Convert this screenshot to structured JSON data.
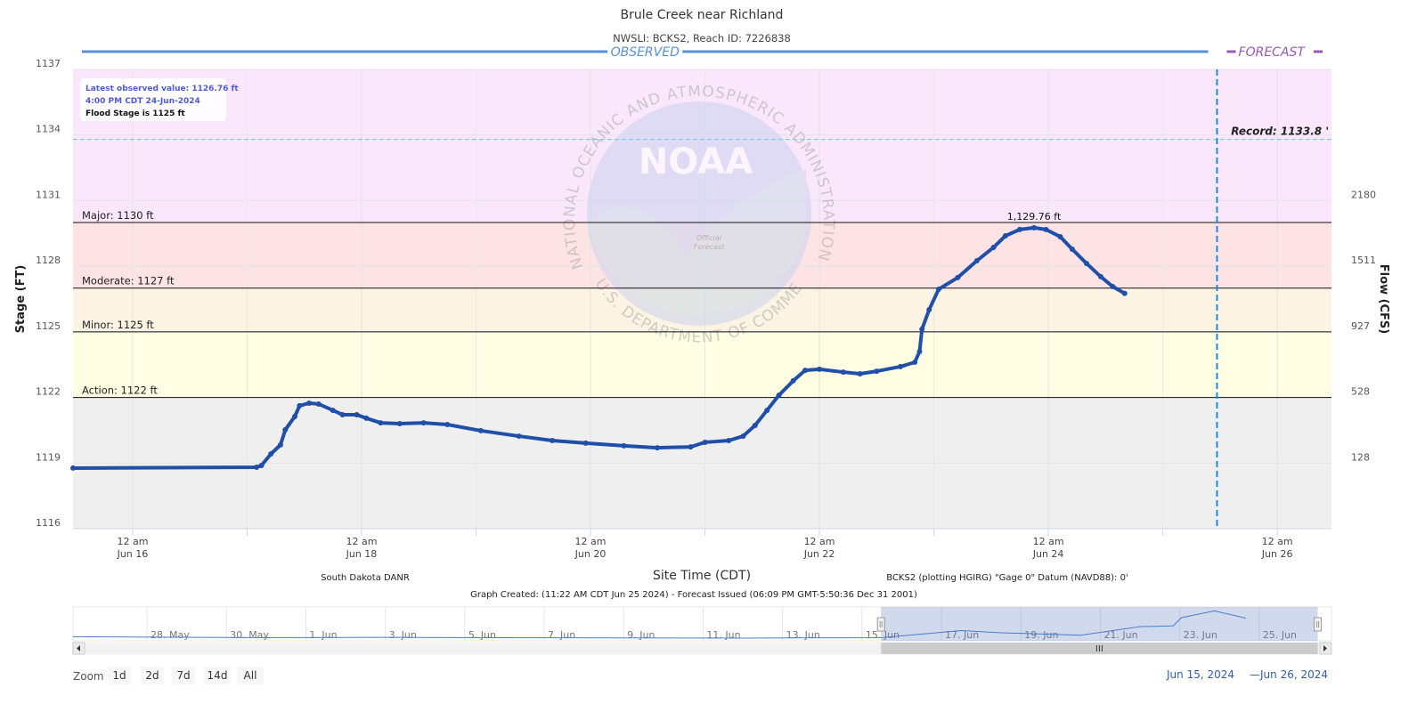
{
  "chart_data": {
    "type": "line",
    "title": "Brule Creek near Richland",
    "subtitle": "NWSLI: BCKS2, Reach ID: 7226838",
    "y_label": "Stage (FT)",
    "y2_label": "Flow (CFS)",
    "x_label": "Site Time (CDT)",
    "color": "#1f4fa8",
    "grid": true,
    "xlim": [
      "2024-06-15 11:30",
      "2024-06-26 11:22"
    ],
    "xticks": [
      {
        "value": "2024-06-16 00:00",
        "label": [
          "12 am",
          "Jun 16"
        ]
      },
      {
        "value": "2024-06-18 00:00",
        "label": [
          "12 am",
          "Jun 18"
        ]
      },
      {
        "value": "2024-06-20 00:00",
        "label": [
          "12 am",
          "Jun 20"
        ]
      },
      {
        "value": "2024-06-22 00:00",
        "label": [
          "12 am",
          "Jun 22"
        ]
      },
      {
        "value": "2024-06-24 00:00",
        "label": [
          "12 am",
          "Jun 24"
        ]
      },
      {
        "value": "2024-06-26 00:00",
        "label": [
          "12 am",
          "Jun 26"
        ]
      }
    ],
    "xminor_ticks": [
      "2024-06-17 00:00",
      "2024-06-19 00:00",
      "2024-06-21 00:00",
      "2024-06-23 00:00",
      "2024-06-25 00:00"
    ],
    "ylim": [
      1116,
      1137
    ],
    "yticks": [
      1116,
      1119,
      1122,
      1125,
      1128,
      1131,
      1134,
      1137
    ],
    "y2ticks": [
      128,
      528,
      927,
      1511,
      2180
    ],
    "y2_tick_stage": [
      1119,
      1122,
      1125,
      1128,
      1131
    ],
    "base_color": "#efefef",
    "thresholds": [
      {
        "label": "Action: 1122 ft",
        "value": 1122,
        "color": "#fffde2"
      },
      {
        "label": "Minor: 1125 ft",
        "value": 1125,
        "color": "#fdf3e3"
      },
      {
        "label": "Moderate: 1127 ft",
        "value": 1127,
        "color": "#fde3e4"
      },
      {
        "label": "Major: 1130 ft",
        "value": 1130,
        "color": "#fbe7fb"
      }
    ],
    "record": {
      "label": "Record: 1133.8 '",
      "value": 1133.8
    },
    "forecast_start": "2024-06-25 11:22",
    "observed_label": "OBSERVED",
    "forecast_label": "FORECAST",
    "info_box": [
      "Latest observed value: 1126.76 ft",
      "4:00 PM CDT 24-Jun-2024",
      "Flood Stage is 1125 ft"
    ],
    "watermark": {
      "name": "NOAA",
      "top": "NATIONAL OCEANIC AND ATMOSPHERIC ADMINISTRATION",
      "bottom": "U.S. DEPARTMENT OF COMMERCE",
      "stamp": [
        "Official",
        "Forecast"
      ]
    },
    "x": [
      "2024-06-15 11:30",
      "2024-06-17 02:00",
      "2024-06-17 03:00",
      "2024-06-17 05:00",
      "2024-06-17 07:00",
      "2024-06-17 08:00",
      "2024-06-17 10:00",
      "2024-06-17 11:00",
      "2024-06-17 13:00",
      "2024-06-17 15:00",
      "2024-06-17 18:00",
      "2024-06-17 20:00",
      "2024-06-17 23:00",
      "2024-06-18 01:00",
      "2024-06-18 04:00",
      "2024-06-18 08:00",
      "2024-06-18 13:00",
      "2024-06-18 18:00",
      "2024-06-19 01:00",
      "2024-06-19 09:00",
      "2024-06-19 16:00",
      "2024-06-19 23:00",
      "2024-06-20 07:00",
      "2024-06-20 14:00",
      "2024-06-20 21:00",
      "2024-06-21 00:00",
      "2024-06-21 05:00",
      "2024-06-21 08:00",
      "2024-06-21 10:30",
      "2024-06-21 13:00",
      "2024-06-21 15:30",
      "2024-06-21 18:30",
      "2024-06-21 21:00",
      "2024-06-22 00:00",
      "2024-06-22 05:00",
      "2024-06-22 08:30",
      "2024-06-22 12:00",
      "2024-06-22 17:00",
      "2024-06-22 20:00",
      "2024-06-22 21:00",
      "2024-06-22 21:30",
      "2024-06-22 23:00",
      "2024-06-23 01:00",
      "2024-06-23 05:00",
      "2024-06-23 09:00",
      "2024-06-23 12:30",
      "2024-06-23 15:00",
      "2024-06-23 18:00",
      "2024-06-23 21:00",
      "2024-06-23 23:30",
      "2024-06-24 02:30",
      "2024-06-24 05:00",
      "2024-06-24 08:00",
      "2024-06-24 11:00",
      "2024-06-24 13:30",
      "2024-06-24 16:00"
    ],
    "values": [
      1118.77,
      1118.81,
      1118.89,
      1119.42,
      1119.83,
      1120.52,
      1121.13,
      1121.62,
      1121.74,
      1121.7,
      1121.41,
      1121.21,
      1121.21,
      1121.05,
      1120.84,
      1120.8,
      1120.84,
      1120.76,
      1120.48,
      1120.23,
      1120.03,
      1119.91,
      1119.79,
      1119.7,
      1119.74,
      1119.95,
      1120.03,
      1120.23,
      1120.72,
      1121.41,
      1122.1,
      1122.76,
      1123.24,
      1123.29,
      1123.16,
      1123.08,
      1123.2,
      1123.41,
      1123.61,
      1124.1,
      1125.12,
      1126.01,
      1126.95,
      1127.48,
      1128.25,
      1128.86,
      1129.39,
      1129.68,
      1129.76,
      1129.68,
      1129.35,
      1128.78,
      1128.13,
      1127.52,
      1127.07,
      1126.76
    ],
    "value_labels": [
      null,
      null,
      null,
      null,
      null,
      null,
      null,
      null,
      null,
      null,
      null,
      null,
      null,
      null,
      null,
      null,
      null,
      null,
      null,
      null,
      null,
      null,
      null,
      null,
      null,
      null,
      null,
      null,
      null,
      null,
      null,
      null,
      null,
      null,
      null,
      null,
      null,
      null,
      null,
      null,
      null,
      null,
      null,
      null,
      null,
      null,
      null,
      null,
      "1,129.76 ft",
      null,
      null,
      null,
      null,
      null,
      null,
      null
    ],
    "source": "South Dakota DANR",
    "datum": "BCKS2 (plotting HGIRG) \"Gage 0\" Datum (NAVD88): 0'",
    "created": "Graph Created: (11:22 AM CDT Jun 25 2024) - Forecast Issued (06:09 PM GMT-5:50:36 Dec 31 2001)",
    "navigator": {
      "xlim": [
        "2024-05-26 03:20",
        "2024-06-26 19:40"
      ],
      "ylim": [
        1117.5,
        1131
      ],
      "xticks": [
        {
          "value": "2024-05-28 00:00",
          "label": "28. May"
        },
        {
          "value": "2024-05-30 00:00",
          "label": "30. May"
        },
        {
          "value": "2024-06-01 00:00",
          "label": "1. Jun"
        },
        {
          "value": "2024-06-03 00:00",
          "label": "3. Jun"
        },
        {
          "value": "2024-06-05 00:00",
          "label": "5. Jun"
        },
        {
          "value": "2024-06-07 00:00",
          "label": "7. Jun"
        },
        {
          "value": "2024-06-09 00:00",
          "label": "9. Jun"
        },
        {
          "value": "2024-06-11 00:00",
          "label": "11. Jun"
        },
        {
          "value": "2024-06-13 00:00",
          "label": "13. Jun"
        },
        {
          "value": "2024-06-15 00:00",
          "label": "15. Jun"
        },
        {
          "value": "2024-06-17 00:00",
          "label": "17. Jun"
        },
        {
          "value": "2024-06-19 00:00",
          "label": "19. Jun"
        },
        {
          "value": "2024-06-21 00:00",
          "label": "21. Jun"
        },
        {
          "value": "2024-06-23 00:00",
          "label": "23. Jun"
        },
        {
          "value": "2024-06-25 00:00",
          "label": "25. Jun"
        }
      ],
      "x": [
        "2024-05-26 03:20",
        "2024-05-28 00:00",
        "2024-05-31 00:00",
        "2024-06-03 00:00",
        "2024-06-06 00:00",
        "2024-06-09 00:00",
        "2024-06-12 00:00",
        "2024-06-15 12:00",
        "2024-06-17 12:00",
        "2024-06-18 12:00",
        "2024-06-20 12:00",
        "2024-06-22 00:00",
        "2024-06-22 20:00",
        "2024-06-23 01:00",
        "2024-06-23 21:00",
        "2024-06-24 16:00"
      ],
      "values": [
        1119.2,
        1119.0,
        1118.8,
        1118.9,
        1118.8,
        1118.7,
        1118.6,
        1118.8,
        1121.7,
        1120.8,
        1119.8,
        1123.3,
        1123.6,
        1127.0,
        1129.76,
        1126.76
      ]
    },
    "zoom": {
      "label": "Zoom",
      "buttons": [
        "1d",
        "2d",
        "7d",
        "14d",
        "All"
      ]
    },
    "range": {
      "from": "Jun 15, 2024",
      "separator": "—",
      "to": "Jun 26, 2024"
    }
  }
}
